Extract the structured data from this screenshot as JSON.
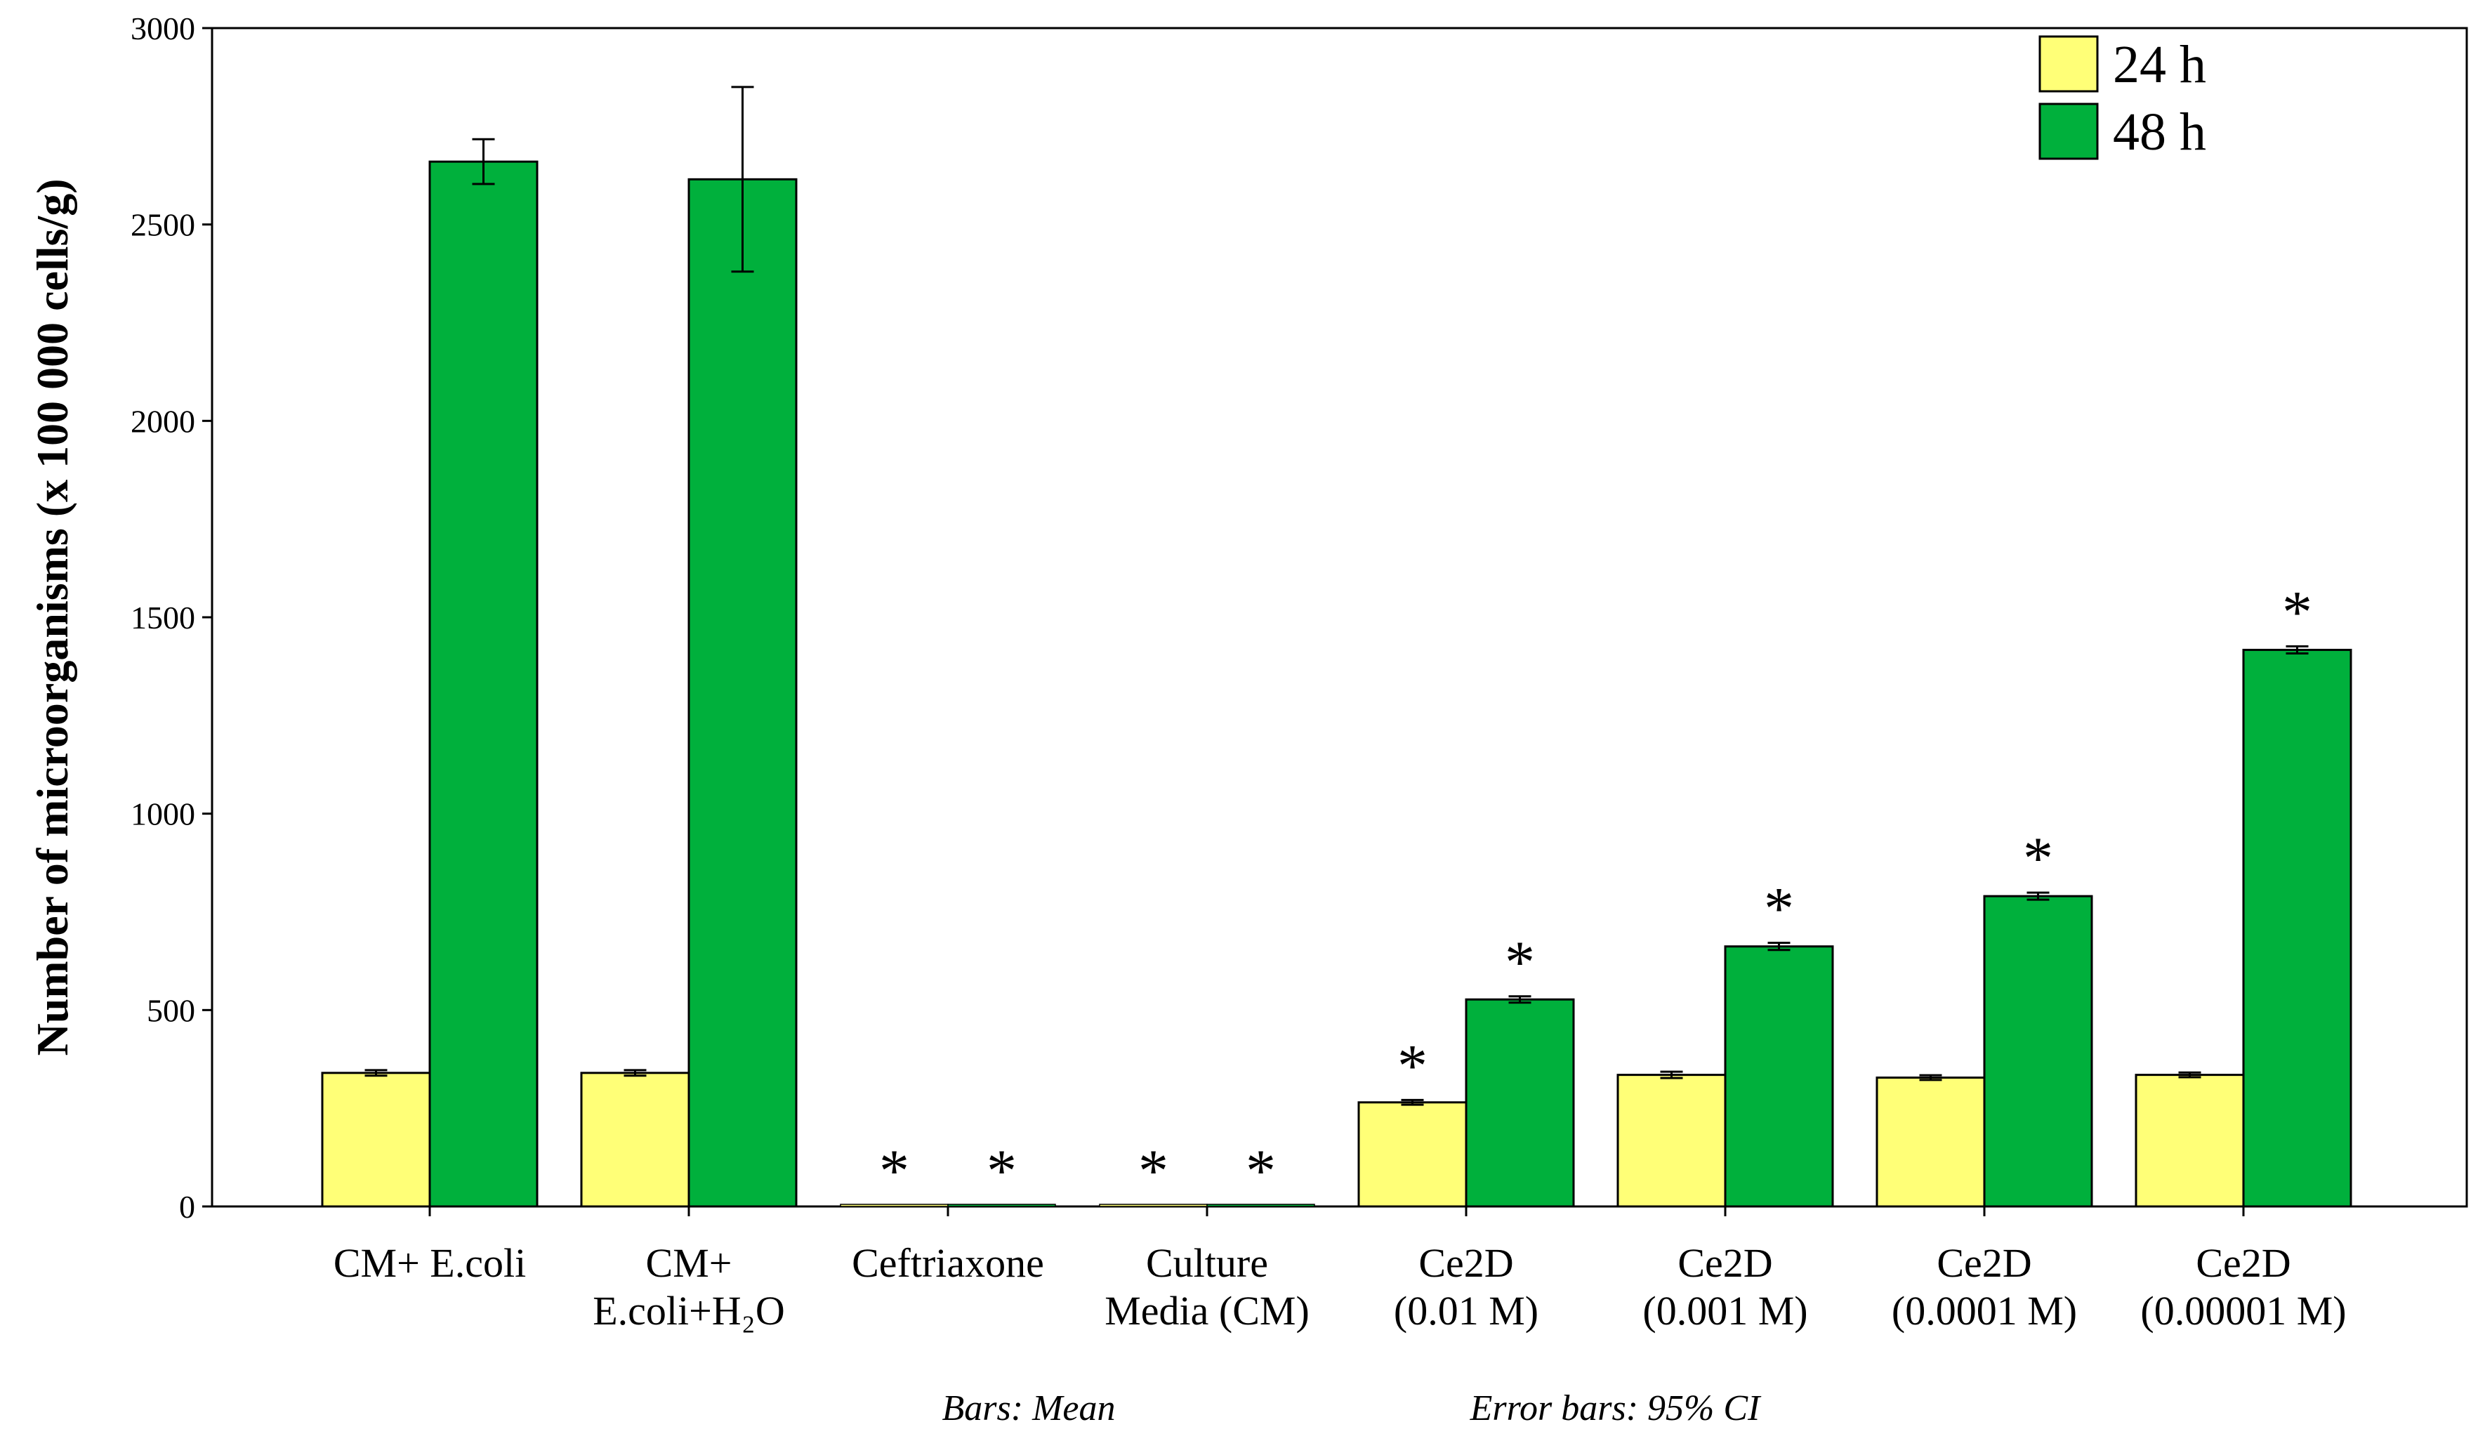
{
  "chart_data": {
    "type": "bar",
    "ylabel": "Number of microorganisms (x 100 000 cells/g)",
    "xlabel": "",
    "ylim": [
      0,
      3000
    ],
    "yticks": [
      0,
      500,
      1000,
      1500,
      2000,
      2500,
      3000
    ],
    "grid": false,
    "legend_position": "top-right",
    "categories": [
      [
        "CM+ E.coli"
      ],
      [
        "CM+",
        "E.coli+H₂O"
      ],
      [
        "Ceftriaxone"
      ],
      [
        "Culture",
        "Media (CM)"
      ],
      [
        "Ce2D",
        "(0.01 M)"
      ],
      [
        "Ce2D",
        "(0.001 M)"
      ],
      [
        "Ce2D",
        "(0.0001 M)"
      ],
      [
        "Ce2D",
        "(0.00001 M)"
      ]
    ],
    "series": [
      {
        "name": "24 h",
        "color": "#ffff77",
        "values": [
          340,
          340,
          0,
          0,
          265,
          335,
          328,
          335
        ],
        "ci": [
          [
            333,
            347
          ],
          [
            333,
            347
          ],
          [
            0,
            0
          ],
          [
            0,
            0
          ],
          [
            259,
            271
          ],
          [
            327,
            343
          ],
          [
            322,
            334
          ],
          [
            329,
            341
          ]
        ],
        "significant": [
          false,
          false,
          true,
          true,
          true,
          false,
          false,
          false
        ]
      },
      {
        "name": "48 h",
        "color": "#00b03c",
        "values": [
          2660,
          2615,
          0,
          0,
          527,
          662,
          790,
          1417
        ],
        "ci": [
          [
            2603,
            2717
          ],
          [
            2380,
            2850
          ],
          [
            0,
            0
          ],
          [
            0,
            0
          ],
          [
            519,
            535
          ],
          [
            653,
            671
          ],
          [
            781,
            799
          ],
          [
            1408,
            1426
          ]
        ],
        "significant": [
          false,
          false,
          true,
          true,
          true,
          true,
          true,
          true
        ]
      }
    ],
    "annotation_symbol": "*",
    "footnotes": {
      "bars": "Bars: Mean",
      "error_bars": "Error bars: 95% CI"
    }
  }
}
